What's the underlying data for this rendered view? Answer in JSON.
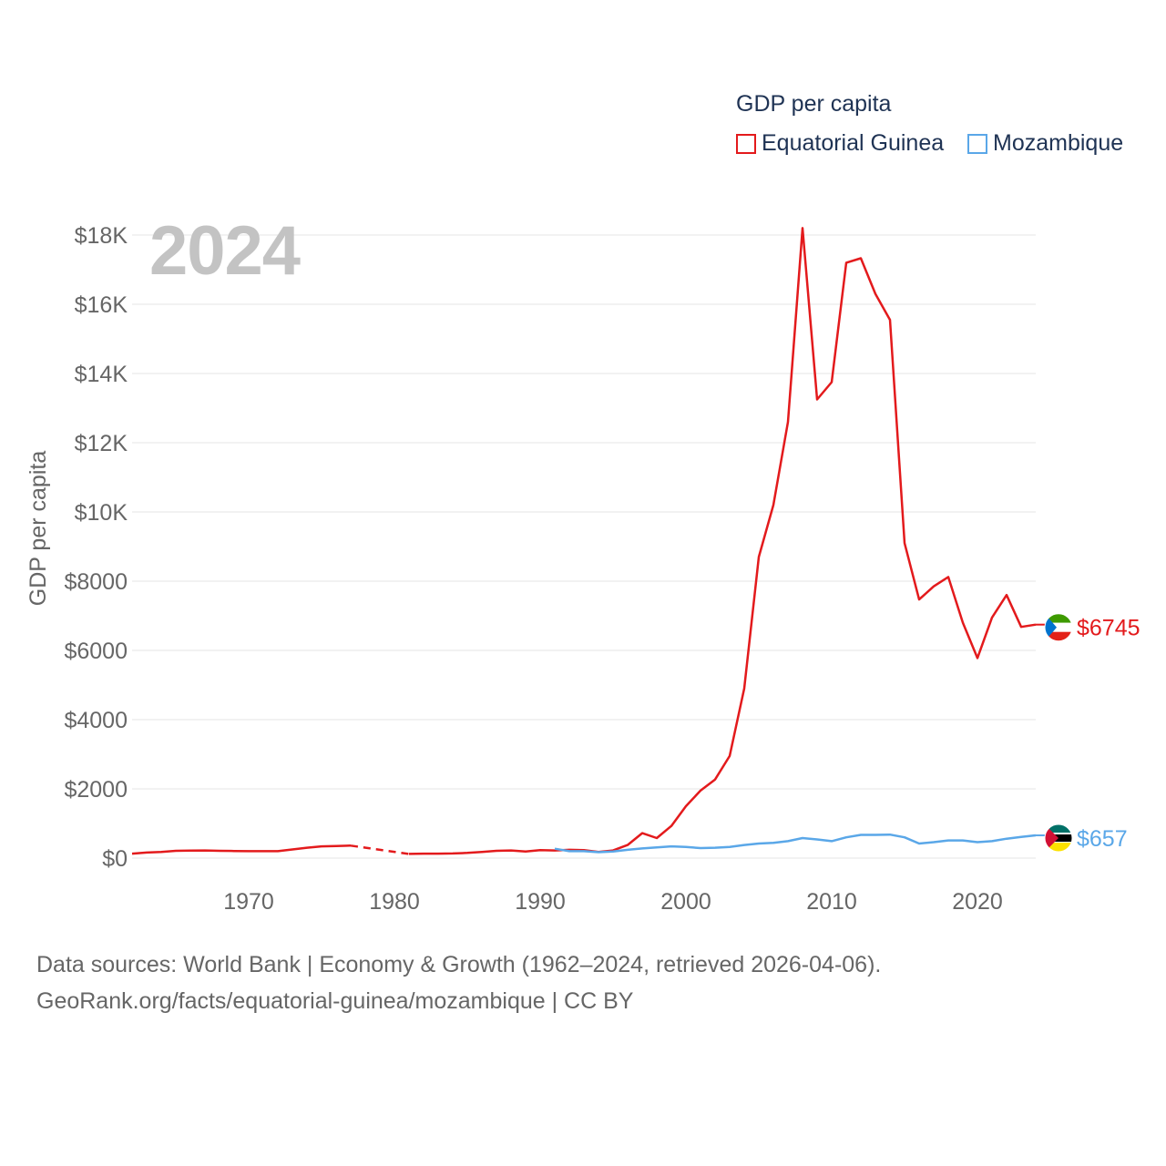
{
  "legend": {
    "title": "GDP per capita",
    "series": [
      {
        "name": "Equatorial Guinea",
        "color": "#e31a1c"
      },
      {
        "name": "Mozambique",
        "color": "#5aa7e8"
      }
    ]
  },
  "year_badge": "2024",
  "footer": {
    "line1": "Data sources: World Bank | Economy & Growth (1962–2024, retrieved 2026-04-06).",
    "line2": "GeoRank.org/facts/equatorial-guinea/mozambique | CC BY"
  },
  "chart_data": {
    "type": "line",
    "title": "GDP per capita",
    "xlabel": "",
    "ylabel": "GDP per capita",
    "xlim": [
      1962,
      2024
    ],
    "ylim": [
      0,
      18000
    ],
    "grid": true,
    "x_ticks": [
      1970,
      1980,
      1990,
      2000,
      2010,
      2020
    ],
    "y_ticks": [
      0,
      2000,
      4000,
      6000,
      8000,
      10000,
      12000,
      14000,
      16000,
      18000
    ],
    "y_tick_labels": [
      "$0",
      "$2000",
      "$4000",
      "$6000",
      "$8000",
      "$10K",
      "$12K",
      "$14K",
      "$16K",
      "$18K"
    ],
    "series": [
      {
        "name": "Equatorial Guinea",
        "color": "#e31a1c",
        "end_label": "$6745",
        "gap": [
          1977,
          1981
        ],
        "points": [
          [
            1962,
            130
          ],
          [
            1963,
            160
          ],
          [
            1964,
            180
          ],
          [
            1965,
            210
          ],
          [
            1966,
            215
          ],
          [
            1967,
            220
          ],
          [
            1968,
            210
          ],
          [
            1969,
            205
          ],
          [
            1970,
            200
          ],
          [
            1971,
            200
          ],
          [
            1972,
            200
          ],
          [
            1973,
            250
          ],
          [
            1974,
            300
          ],
          [
            1975,
            340
          ],
          [
            1976,
            350
          ],
          [
            1977,
            360
          ],
          [
            1981,
            120
          ],
          [
            1982,
            130
          ],
          [
            1983,
            130
          ],
          [
            1984,
            135
          ],
          [
            1985,
            150
          ],
          [
            1986,
            180
          ],
          [
            1987,
            210
          ],
          [
            1988,
            220
          ],
          [
            1989,
            190
          ],
          [
            1990,
            230
          ],
          [
            1991,
            220
          ],
          [
            1992,
            240
          ],
          [
            1993,
            230
          ],
          [
            1994,
            180
          ],
          [
            1995,
            220
          ],
          [
            1996,
            380
          ],
          [
            1997,
            720
          ],
          [
            1998,
            580
          ],
          [
            1999,
            930
          ],
          [
            2000,
            1500
          ],
          [
            2001,
            1950
          ],
          [
            2002,
            2270
          ],
          [
            2003,
            2950
          ],
          [
            2004,
            4900
          ],
          [
            2005,
            8700
          ],
          [
            2006,
            10200
          ],
          [
            2007,
            12600
          ],
          [
            2008,
            18200
          ],
          [
            2009,
            13250
          ],
          [
            2010,
            13750
          ],
          [
            2011,
            17200
          ],
          [
            2012,
            17330
          ],
          [
            2013,
            16300
          ],
          [
            2014,
            15550
          ],
          [
            2015,
            9100
          ],
          [
            2016,
            7470
          ],
          [
            2017,
            7850
          ],
          [
            2018,
            8120
          ],
          [
            2019,
            6800
          ],
          [
            2020,
            5780
          ],
          [
            2021,
            6950
          ],
          [
            2022,
            7600
          ],
          [
            2023,
            6680
          ],
          [
            2024,
            6745
          ]
        ]
      },
      {
        "name": "Mozambique",
        "color": "#5aa7e8",
        "end_label": "$657",
        "points": [
          [
            1991,
            270
          ],
          [
            1992,
            200
          ],
          [
            1993,
            200
          ],
          [
            1994,
            170
          ],
          [
            1995,
            190
          ],
          [
            1996,
            240
          ],
          [
            1997,
            280
          ],
          [
            1998,
            310
          ],
          [
            1999,
            340
          ],
          [
            2000,
            320
          ],
          [
            2001,
            290
          ],
          [
            2002,
            300
          ],
          [
            2003,
            320
          ],
          [
            2004,
            380
          ],
          [
            2005,
            420
          ],
          [
            2006,
            440
          ],
          [
            2007,
            490
          ],
          [
            2008,
            580
          ],
          [
            2009,
            540
          ],
          [
            2010,
            490
          ],
          [
            2011,
            600
          ],
          [
            2012,
            670
          ],
          [
            2013,
            670
          ],
          [
            2014,
            680
          ],
          [
            2015,
            600
          ],
          [
            2016,
            420
          ],
          [
            2017,
            460
          ],
          [
            2018,
            510
          ],
          [
            2019,
            510
          ],
          [
            2020,
            460
          ],
          [
            2021,
            490
          ],
          [
            2022,
            560
          ],
          [
            2023,
            610
          ],
          [
            2024,
            657
          ]
        ]
      }
    ]
  }
}
